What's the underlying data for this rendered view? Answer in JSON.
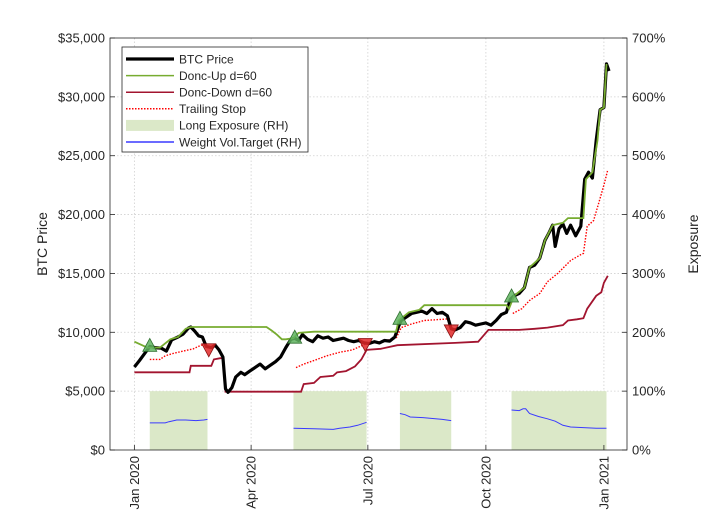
{
  "chart_data": {
    "type": "line",
    "xlabel": "",
    "ylabel": "BTC Price",
    "ylabel_right": "Exposure",
    "x_unit": "days since 2020-01-01",
    "xlim": [
      -19,
      384
    ],
    "ylim": [
      0,
      35000
    ],
    "ylim_right": [
      0,
      700
    ],
    "grid": true,
    "legend_position": "top-left",
    "x_ticks": [
      {
        "day": 0,
        "label": "Jan 2020"
      },
      {
        "day": 91,
        "label": "Apr 2020"
      },
      {
        "day": 182,
        "label": "Jul 2020"
      },
      {
        "day": 274,
        "label": "Oct 2020"
      },
      {
        "day": 366,
        "label": "Jan 2021"
      }
    ],
    "y_ticks": [
      {
        "value": 0,
        "label": "$0"
      },
      {
        "value": 5000,
        "label": "$5,000"
      },
      {
        "value": 10000,
        "label": "$10,000"
      },
      {
        "value": 15000,
        "label": "$15,000"
      },
      {
        "value": 20000,
        "label": "$20,000"
      },
      {
        "value": 25000,
        "label": "$25,000"
      },
      {
        "value": 30000,
        "label": "$30,000"
      },
      {
        "value": 35000,
        "label": "$35,000"
      }
    ],
    "y_ticks_right": [
      {
        "value": 0,
        "label": "0%"
      },
      {
        "value": 100,
        "label": "100%"
      },
      {
        "value": 200,
        "label": "200%"
      },
      {
        "value": 300,
        "label": "300%"
      },
      {
        "value": 400,
        "label": "400%"
      },
      {
        "value": 500,
        "label": "500%"
      },
      {
        "value": 600,
        "label": "600%"
      },
      {
        "value": 700,
        "label": "700%"
      }
    ],
    "legend": [
      {
        "key": "price",
        "label": "BTC Price",
        "color": "#000000",
        "style": "thick"
      },
      {
        "key": "donc_up",
        "label": "Donc-Up d=60",
        "color": "#77ac30",
        "style": "solid"
      },
      {
        "key": "donc_down",
        "label": "Donc-Down d=60",
        "color": "#a2142f",
        "style": "solid"
      },
      {
        "key": "trailing_stop",
        "label": "Trailing Stop",
        "color": "#ff0000",
        "style": "dotted"
      },
      {
        "key": "long_exposure",
        "label": "Long Exposure (RH)",
        "color": "#dbe8c8",
        "style": "patch"
      },
      {
        "key": "weight",
        "label": "Weight Vol.Target (RH)",
        "color": "#3a3aff",
        "style": "solid"
      }
    ],
    "series": {
      "price": [
        [
          0,
          7050
        ],
        [
          4,
          7600
        ],
        [
          7,
          8050
        ],
        [
          12,
          8800
        ],
        [
          16,
          8700
        ],
        [
          21,
          8650
        ],
        [
          25,
          8400
        ],
        [
          29,
          9350
        ],
        [
          34,
          9600
        ],
        [
          38,
          9850
        ],
        [
          42,
          10350
        ],
        [
          44,
          10450
        ],
        [
          47,
          10100
        ],
        [
          50,
          9700
        ],
        [
          53,
          9600
        ],
        [
          56,
          8800
        ],
        [
          60,
          8700
        ],
        [
          63,
          8900
        ],
        [
          66,
          8500
        ],
        [
          69,
          7900
        ],
        [
          71,
          5200
        ],
        [
          73,
          4900
        ],
        [
          76,
          5300
        ],
        [
          79,
          6200
        ],
        [
          83,
          6600
        ],
        [
          86,
          6400
        ],
        [
          90,
          6700
        ],
        [
          94,
          7000
        ],
        [
          98,
          7300
        ],
        [
          102,
          6900
        ],
        [
          106,
          7200
        ],
        [
          110,
          7500
        ],
        [
          114,
          7900
        ],
        [
          118,
          8700
        ],
        [
          122,
          9400
        ],
        [
          125,
          9500
        ],
        [
          128,
          9300
        ],
        [
          131,
          9800
        ],
        [
          135,
          9400
        ],
        [
          139,
          9200
        ],
        [
          143,
          9700
        ],
        [
          147,
          9500
        ],
        [
          151,
          9600
        ],
        [
          155,
          9300
        ],
        [
          159,
          9400
        ],
        [
          163,
          9500
        ],
        [
          167,
          9300
        ],
        [
          171,
          9200
        ],
        [
          175,
          9300
        ],
        [
          179,
          9100
        ],
        [
          183,
          9050
        ],
        [
          187,
          9200
        ],
        [
          191,
          9100
        ],
        [
          195,
          9300
        ],
        [
          199,
          9250
        ],
        [
          203,
          9600
        ],
        [
          206,
          10500
        ],
        [
          208,
          11000
        ],
        [
          212,
          11300
        ],
        [
          216,
          11600
        ],
        [
          220,
          11700
        ],
        [
          224,
          11800
        ],
        [
          228,
          11600
        ],
        [
          232,
          12000
        ],
        [
          236,
          11600
        ],
        [
          240,
          11700
        ],
        [
          244,
          11400
        ],
        [
          247,
          10300
        ],
        [
          250,
          10200
        ],
        [
          254,
          10400
        ],
        [
          258,
          10900
        ],
        [
          262,
          10800
        ],
        [
          266,
          10600
        ],
        [
          270,
          10700
        ],
        [
          274,
          10800
        ],
        [
          278,
          10600
        ],
        [
          282,
          11000
        ],
        [
          286,
          11500
        ],
        [
          290,
          11700
        ],
        [
          293,
          12800
        ],
        [
          296,
          13100
        ],
        [
          300,
          13300
        ],
        [
          304,
          13800
        ],
        [
          308,
          15500
        ],
        [
          312,
          15700
        ],
        [
          316,
          16300
        ],
        [
          320,
          17800
        ],
        [
          323,
          18400
        ],
        [
          326,
          19100
        ],
        [
          328,
          17300
        ],
        [
          331,
          18800
        ],
        [
          334,
          19200
        ],
        [
          337,
          18400
        ],
        [
          340,
          19100
        ],
        [
          344,
          18200
        ],
        [
          348,
          19000
        ],
        [
          351,
          23000
        ],
        [
          354,
          23600
        ],
        [
          357,
          23100
        ],
        [
          360,
          26300
        ],
        [
          363,
          28900
        ],
        [
          366,
          29100
        ],
        [
          368,
          32800
        ],
        [
          370,
          32200
        ]
      ],
      "donc_up": [
        [
          0,
          9200
        ],
        [
          6,
          8900
        ],
        [
          10,
          8700
        ],
        [
          20,
          8700
        ],
        [
          28,
          9400
        ],
        [
          34,
          9600
        ],
        [
          40,
          10300
        ],
        [
          44,
          10450
        ],
        [
          103,
          10450
        ],
        [
          107,
          10150
        ],
        [
          111,
          9800
        ],
        [
          115,
          9400
        ],
        [
          118,
          9400
        ],
        [
          124,
          9500
        ],
        [
          128,
          9950
        ],
        [
          140,
          10050
        ],
        [
          204,
          10050
        ],
        [
          206,
          11000
        ],
        [
          214,
          11700
        ],
        [
          222,
          11900
        ],
        [
          226,
          12300
        ],
        [
          290,
          12300
        ],
        [
          292,
          12000
        ],
        [
          296,
          13100
        ],
        [
          304,
          13800
        ],
        [
          308,
          15500
        ],
        [
          316,
          16300
        ],
        [
          320,
          17800
        ],
        [
          326,
          19100
        ],
        [
          334,
          19300
        ],
        [
          338,
          19700
        ],
        [
          350,
          19700
        ],
        [
          352,
          23000
        ],
        [
          357,
          23600
        ],
        [
          361,
          26300
        ],
        [
          363,
          28900
        ],
        [
          366,
          29100
        ],
        [
          368,
          32800
        ]
      ],
      "donc_down": [
        [
          0,
          6600
        ],
        [
          43,
          6600
        ],
        [
          44,
          7150
        ],
        [
          60,
          7150
        ],
        [
          62,
          7700
        ],
        [
          67,
          7800
        ],
        [
          69,
          7800
        ],
        [
          71,
          4950
        ],
        [
          130,
          4950
        ],
        [
          132,
          5600
        ],
        [
          140,
          5700
        ],
        [
          145,
          6200
        ],
        [
          155,
          6300
        ],
        [
          158,
          6600
        ],
        [
          165,
          6700
        ],
        [
          172,
          7100
        ],
        [
          177,
          7700
        ],
        [
          181,
          8500
        ],
        [
          192,
          8600
        ],
        [
          205,
          8900
        ],
        [
          250,
          9100
        ],
        [
          268,
          9200
        ],
        [
          272,
          9700
        ],
        [
          276,
          10200
        ],
        [
          300,
          10200
        ],
        [
          312,
          10300
        ],
        [
          322,
          10400
        ],
        [
          334,
          10600
        ],
        [
          338,
          11000
        ],
        [
          345,
          11100
        ],
        [
          350,
          11200
        ],
        [
          353,
          12000
        ],
        [
          360,
          13100
        ],
        [
          364,
          13400
        ],
        [
          366,
          14200
        ],
        [
          369,
          14800
        ]
      ],
      "trailing_stop": [
        [
          [
            12,
            7700
          ],
          [
            20,
            7700
          ],
          [
            24,
            8000
          ],
          [
            30,
            8200
          ],
          [
            38,
            8400
          ],
          [
            46,
            8600
          ],
          [
            52,
            8900
          ],
          [
            56,
            9000
          ]
        ],
        [
          [
            126,
            7000
          ],
          [
            132,
            7300
          ],
          [
            140,
            7600
          ],
          [
            150,
            8000
          ],
          [
            160,
            8300
          ],
          [
            170,
            8500
          ],
          [
            180,
            9000
          ],
          [
            192,
            9200
          ],
          [
            204,
            9500
          ],
          [
            208,
            10400
          ],
          [
            216,
            10700
          ],
          [
            226,
            11000
          ],
          [
            240,
            11100
          ],
          [
            246,
            11150
          ]
        ],
        [
          [
            295,
            11600
          ],
          [
            302,
            12000
          ],
          [
            308,
            12700
          ],
          [
            316,
            13300
          ],
          [
            322,
            14300
          ],
          [
            330,
            15000
          ],
          [
            340,
            16100
          ],
          [
            348,
            16600
          ],
          [
            350,
            16700
          ],
          [
            353,
            19000
          ],
          [
            358,
            19500
          ],
          [
            362,
            21000
          ],
          [
            366,
            22500
          ],
          [
            369,
            23800
          ]
        ]
      ],
      "long_exposure_windows": [
        [
          12,
          57
        ],
        [
          124,
          181
        ],
        [
          207,
          247
        ],
        [
          294,
          368
        ]
      ],
      "long_exposure_level": 100,
      "weight": [
        [
          [
            12,
            46
          ],
          [
            24,
            46
          ],
          [
            27,
            48
          ],
          [
            33,
            51
          ],
          [
            40,
            51
          ],
          [
            48,
            50
          ],
          [
            54,
            51
          ],
          [
            57,
            52
          ]
        ],
        [
          [
            124,
            37
          ],
          [
            140,
            36
          ],
          [
            155,
            35
          ],
          [
            160,
            37
          ],
          [
            168,
            39
          ],
          [
            174,
            42
          ],
          [
            181,
            47
          ]
        ],
        [
          [
            207,
            62
          ],
          [
            211,
            60
          ],
          [
            215,
            56
          ],
          [
            225,
            55
          ],
          [
            240,
            52
          ],
          [
            247,
            50
          ]
        ],
        [
          [
            294,
            68
          ],
          [
            300,
            67
          ],
          [
            303,
            70
          ],
          [
            305,
            70
          ],
          [
            308,
            62
          ],
          [
            315,
            57
          ],
          [
            322,
            53
          ],
          [
            328,
            49
          ],
          [
            334,
            42
          ],
          [
            340,
            39
          ],
          [
            350,
            38
          ],
          [
            360,
            37
          ],
          [
            368,
            37
          ]
        ]
      ]
    },
    "buy_signals": [
      [
        12,
        8800
      ],
      [
        125,
        9500
      ],
      [
        207,
        11100
      ],
      [
        294,
        13000
      ]
    ],
    "sell_signals": [
      [
        58,
        8600
      ],
      [
        180,
        9050
      ],
      [
        247,
        10200
      ]
    ]
  }
}
